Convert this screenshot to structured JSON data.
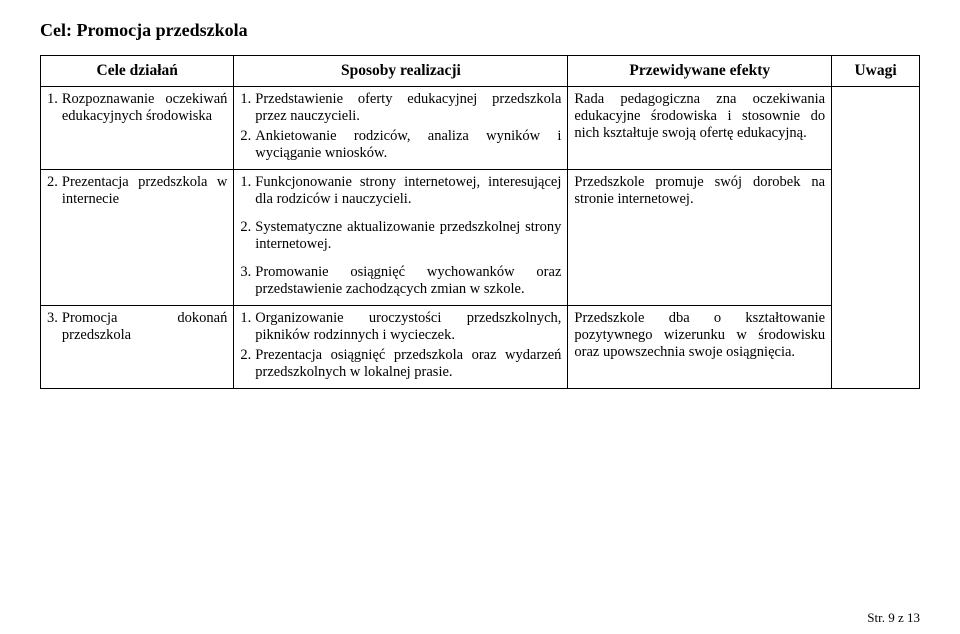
{
  "heading": "Cel: Promocja przedszkola",
  "headers": {
    "cele": "Cele działań",
    "sposoby": "Sposoby realizacji",
    "efekty": "Przewidywane efekty",
    "uwagi": "Uwagi"
  },
  "rows": [
    {
      "cele_num": "1.",
      "cele_txt": "Rozpoznawanie oczekiwań edukacyjnych środowiska",
      "sposoby": [
        {
          "n": "1.",
          "t": "Przedstawienie oferty edukacyjnej przedszkola przez nauczycieli."
        },
        {
          "n": "2.",
          "t": "Ankietowanie rodziców, analiza wyników i wyciąganie wniosków."
        }
      ],
      "efekty": "Rada pedagogiczna zna oczekiwania edukacyjne środowiska i stosownie do nich kształtuje swoją ofertę edukacyjną."
    },
    {
      "cele_num": "2.",
      "cele_txt": "Prezentacja przedszkola w internecie",
      "sposoby": [
        {
          "n": "1.",
          "t": "Funkcjonowanie strony internetowej, interesującej dla rodziców i nauczycieli."
        },
        {
          "n": "2.",
          "t": "Systematyczne aktualizowanie przedszkolnej strony internetowej."
        },
        {
          "n": "3.",
          "t": "Promowanie osiągnięć wychowanków oraz przedstawienie zachodzących zmian w szkole."
        }
      ],
      "efekty": "Przedszkole promuje swój dorobek  na stronie internetowej."
    },
    {
      "cele_num": "3.",
      "cele_txt": "Promocja dokonań przedszkola",
      "sposoby": [
        {
          "n": "1.",
          "t": "Organizowanie uroczystości przedszkolnych, pikników rodzinnych i wycieczek."
        },
        {
          "n": "2.",
          "t": "Prezentacja osiągnięć przedszkola oraz wydarzeń przedszkolnych w lokalnej prasie."
        }
      ],
      "efekty": "Przedszkole dba o kształtowanie pozytywnego wizerunku w środowisku oraz upowszechnia swoje osiągnięcia."
    }
  ],
  "footer": "Str. 9 z 13"
}
